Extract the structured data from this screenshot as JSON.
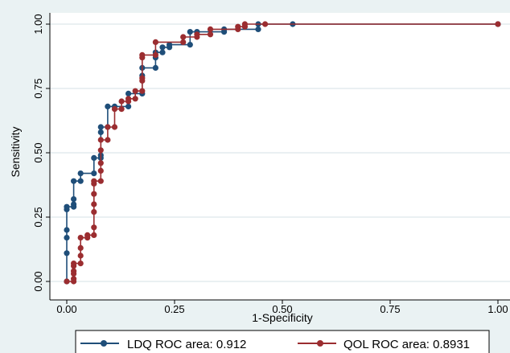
{
  "chart_data": {
    "type": "line",
    "xlabel": "1-Specificity",
    "ylabel": "Sensitivity",
    "xlim": [
      0,
      1
    ],
    "ylim": [
      0,
      1
    ],
    "x_ticks": [
      "0.00",
      "0.25",
      "0.50",
      "0.75",
      "1.00"
    ],
    "y_ticks": [
      "0.00",
      "0.25",
      "0.50",
      "0.75",
      "1.00"
    ],
    "grid": true,
    "legend_position": "bottom",
    "series": [
      {
        "name": "LDQ ROC area: 0.912",
        "color": "#1f4e79",
        "marker": "circle",
        "points": [
          [
            0,
            0
          ],
          [
            0,
            0.11
          ],
          [
            0,
            0.17
          ],
          [
            0,
            0.2
          ],
          [
            0,
            0.28
          ],
          [
            0,
            0.29
          ],
          [
            0.016,
            0.29
          ],
          [
            0.016,
            0.3
          ],
          [
            0.016,
            0.32
          ],
          [
            0.016,
            0.39
          ],
          [
            0.032,
            0.39
          ],
          [
            0.032,
            0.42
          ],
          [
            0.063,
            0.42
          ],
          [
            0.063,
            0.48
          ],
          [
            0.079,
            0.48
          ],
          [
            0.079,
            0.49
          ],
          [
            0.079,
            0.58
          ],
          [
            0.079,
            0.6
          ],
          [
            0.095,
            0.6
          ],
          [
            0.095,
            0.68
          ],
          [
            0.111,
            0.68
          ],
          [
            0.143,
            0.68
          ],
          [
            0.143,
            0.73
          ],
          [
            0.175,
            0.73
          ],
          [
            0.175,
            0.8
          ],
          [
            0.175,
            0.83
          ],
          [
            0.206,
            0.83
          ],
          [
            0.206,
            0.87
          ],
          [
            0.206,
            0.89
          ],
          [
            0.222,
            0.89
          ],
          [
            0.222,
            0.91
          ],
          [
            0.238,
            0.91
          ],
          [
            0.238,
            0.92
          ],
          [
            0.286,
            0.92
          ],
          [
            0.286,
            0.97
          ],
          [
            0.302,
            0.97
          ],
          [
            0.365,
            0.97
          ],
          [
            0.365,
            0.98
          ],
          [
            0.444,
            0.98
          ],
          [
            0.444,
            1
          ],
          [
            0.524,
            1
          ],
          [
            1,
            1
          ]
        ]
      },
      {
        "name": "QOL ROC area: 0.8931",
        "color": "#9b2d30",
        "marker": "circle",
        "points": [
          [
            0,
            0
          ],
          [
            0.016,
            0
          ],
          [
            0.016,
            0.01
          ],
          [
            0.016,
            0.03
          ],
          [
            0.016,
            0.04
          ],
          [
            0.016,
            0.06
          ],
          [
            0.016,
            0.07
          ],
          [
            0.032,
            0.07
          ],
          [
            0.032,
            0.1
          ],
          [
            0.032,
            0.13
          ],
          [
            0.032,
            0.17
          ],
          [
            0.048,
            0.17
          ],
          [
            0.048,
            0.18
          ],
          [
            0.063,
            0.18
          ],
          [
            0.063,
            0.21
          ],
          [
            0.063,
            0.27
          ],
          [
            0.063,
            0.3
          ],
          [
            0.063,
            0.34
          ],
          [
            0.063,
            0.38
          ],
          [
            0.063,
            0.39
          ],
          [
            0.079,
            0.39
          ],
          [
            0.079,
            0.43
          ],
          [
            0.079,
            0.46
          ],
          [
            0.079,
            0.51
          ],
          [
            0.079,
            0.55
          ],
          [
            0.095,
            0.55
          ],
          [
            0.095,
            0.6
          ],
          [
            0.111,
            0.6
          ],
          [
            0.111,
            0.67
          ],
          [
            0.127,
            0.67
          ],
          [
            0.127,
            0.7
          ],
          [
            0.143,
            0.7
          ],
          [
            0.143,
            0.71
          ],
          [
            0.159,
            0.71
          ],
          [
            0.159,
            0.74
          ],
          [
            0.175,
            0.74
          ],
          [
            0.175,
            0.78
          ],
          [
            0.175,
            0.79
          ],
          [
            0.175,
            0.87
          ],
          [
            0.175,
            0.88
          ],
          [
            0.206,
            0.88
          ],
          [
            0.206,
            0.93
          ],
          [
            0.27,
            0.93
          ],
          [
            0.27,
            0.95
          ],
          [
            0.302,
            0.95
          ],
          [
            0.302,
            0.96
          ],
          [
            0.333,
            0.96
          ],
          [
            0.333,
            0.98
          ],
          [
            0.397,
            0.98
          ],
          [
            0.397,
            0.99
          ],
          [
            0.413,
            0.99
          ],
          [
            0.413,
            1
          ],
          [
            0.46,
            1
          ],
          [
            1,
            1
          ]
        ]
      }
    ]
  }
}
